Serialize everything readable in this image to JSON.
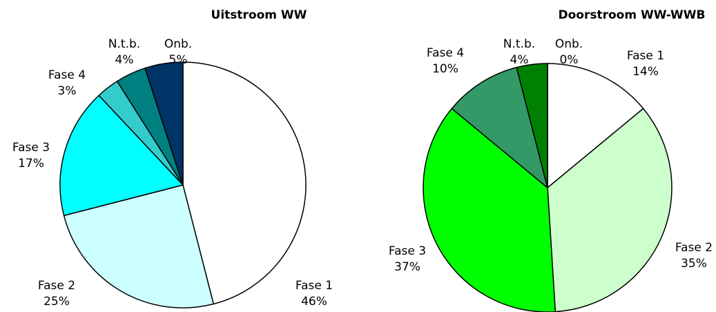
{
  "chart_data": [
    {
      "type": "pie",
      "title": "Uitstroom WW",
      "categories": [
        "Fase 1",
        "Fase 2",
        "Fase 3",
        "Fase 4",
        "N.t.b.",
        "Onb."
      ],
      "values": [
        46,
        25,
        17,
        3,
        4,
        5
      ],
      "value_labels": [
        "46%",
        "25%",
        "17%",
        "3%",
        "4%",
        "5%"
      ],
      "colors": [
        "#ffffff",
        "#ccffff",
        "#00ffff",
        "#33cccc",
        "#008080",
        "#003366"
      ]
    },
    {
      "type": "pie",
      "title": "Doorstroom WW-WWB",
      "categories": [
        "Fase 1",
        "Fase 2",
        "Fase 3",
        "Fase 4",
        "N.t.b.",
        "Onb."
      ],
      "values": [
        14,
        35,
        37,
        10,
        4,
        0
      ],
      "value_labels": [
        "14%",
        "35%",
        "37%",
        "10%",
        "4%",
        "0%"
      ],
      "colors": [
        "#ffffff",
        "#ccffcc",
        "#00ff00",
        "#339966",
        "#008000",
        "#003300"
      ]
    }
  ]
}
